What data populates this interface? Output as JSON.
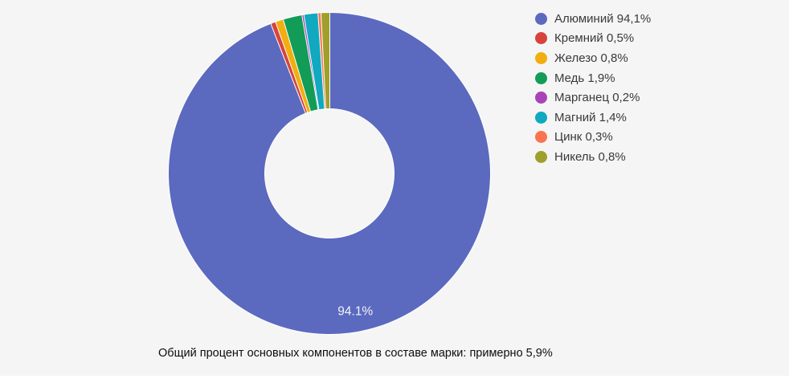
{
  "page": {
    "canvas_bg": "#f5f5f5",
    "page_bg": "#ffffff"
  },
  "chart_data": {
    "type": "pie",
    "variant": "donut",
    "title": "",
    "categories": [
      "Алюминий",
      "Кремний",
      "Железо",
      "Медь",
      "Марганец",
      "Магний",
      "Цинк",
      "Никель"
    ],
    "values": [
      94.1,
      0.5,
      0.8,
      1.9,
      0.2,
      1.4,
      0.3,
      0.8
    ],
    "unit": "%",
    "colors": [
      "#5b6abf",
      "#d6443c",
      "#f1ae10",
      "#129c58",
      "#a844b8",
      "#10a9bf",
      "#fb7450",
      "#9fa02b"
    ],
    "legend_labels": [
      "Алюминий 94,1%",
      "Кремний 0,5%",
      "Железо 0,8%",
      "Медь 1,9%",
      "Марганец 0,2%",
      "Магний 1,4%",
      "Цинк 0,3%",
      "Никель 0,8%"
    ],
    "legend_position": "right",
    "slice_labels": [
      "94.1%",
      "",
      "",
      "",
      "",
      "",
      "",
      ""
    ],
    "slice_label_color": "#f2f3f7",
    "start_angle_deg": 0,
    "clockwise": true,
    "donut_hole_ratio": 0.405,
    "slice_gap_color": "#ffffff",
    "grid": false,
    "caption": "Общий процент основных компонентов в составе марки: примерно 5,9%"
  }
}
